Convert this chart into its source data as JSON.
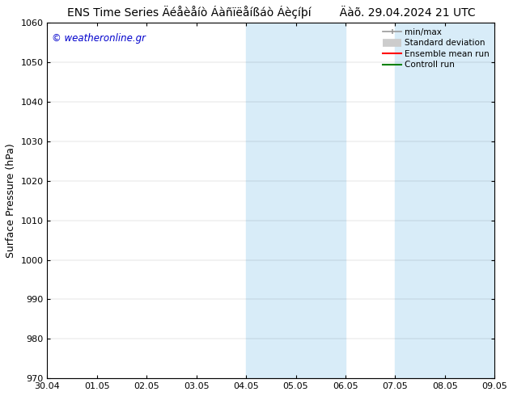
{
  "title_left": "ENS Time Series Äéåèåíò Áàñïëåíßáò Áèçíþí",
  "title_right": "Äàõ. 29.04.2024 21 UTC",
  "ylabel": "Surface Pressure (hPa)",
  "ylim": [
    970,
    1060
  ],
  "yticks": [
    970,
    980,
    990,
    1000,
    1010,
    1020,
    1030,
    1040,
    1050,
    1060
  ],
  "xtick_labels": [
    "30.04",
    "01.05",
    "02.05",
    "03.05",
    "04.05",
    "05.05",
    "06.05",
    "07.05",
    "08.05",
    "09.05"
  ],
  "xlim": [
    0,
    9
  ],
  "shaded_regions": [
    {
      "xstart": 4.0,
      "xend": 5.0,
      "color": "#d8ecf8",
      "alpha": 1.0
    },
    {
      "xstart": 5.0,
      "xend": 6.0,
      "color": "#d8ecf8",
      "alpha": 1.0
    },
    {
      "xstart": 7.0,
      "xend": 8.0,
      "color": "#d8ecf8",
      "alpha": 1.0
    },
    {
      "xstart": 8.0,
      "xend": 9.0,
      "color": "#d8ecf8",
      "alpha": 1.0
    }
  ],
  "bg_color": "#ffffff",
  "watermark_text": "© weatheronline.gr",
  "watermark_color": "#0000cc",
  "legend_items": [
    {
      "label": "min/max",
      "color": "#999999",
      "lw": 1.2
    },
    {
      "label": "Standard deviation",
      "color": "#cccccc",
      "lw": 7
    },
    {
      "label": "Ensemble mean run",
      "color": "#ff0000",
      "lw": 1.5
    },
    {
      "label": "Controll run",
      "color": "#008000",
      "lw": 1.5
    }
  ],
  "title_fontsize": 10,
  "tick_fontsize": 8,
  "ylabel_fontsize": 9
}
